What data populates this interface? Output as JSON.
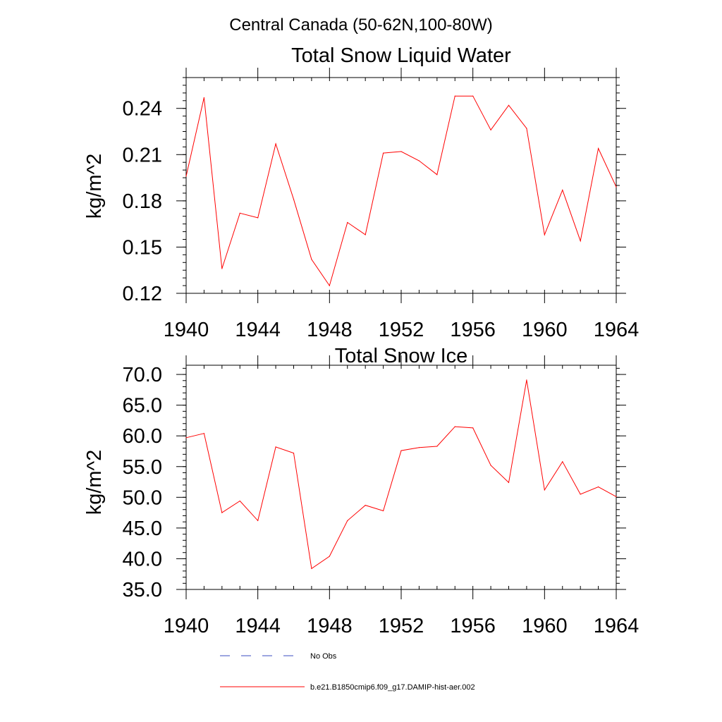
{
  "figure": {
    "title": "Central Canada (50-62N,100-80W)",
    "legend": [
      {
        "label": "No Obs",
        "color": "#3b4cc0",
        "style": "dashed"
      },
      {
        "label": "b.e21.B1850cmip6.f09_g17.DAMIP-hist-aer.002",
        "color": "#ff0000",
        "style": "solid"
      }
    ]
  },
  "chart_data": [
    {
      "type": "line",
      "title": "Total Snow Liquid Water",
      "xlabel": "",
      "ylabel": "kg/m^2",
      "xlim": [
        1940,
        1964
      ],
      "ylim": [
        0.12,
        0.26
      ],
      "xticks": [
        1940,
        1944,
        1948,
        1952,
        1956,
        1960,
        1964
      ],
      "xtick_labels": [
        "1940",
        "1944",
        "1948",
        "1952",
        "1956",
        "1960",
        "1964"
      ],
      "yticks": [
        0.12,
        0.15,
        0.18,
        0.21,
        0.24
      ],
      "ytick_labels": [
        "0.12",
        "0.15",
        "0.18",
        "0.21",
        "0.24"
      ],
      "grid": false,
      "series": [
        {
          "color": "#ff0000",
          "x": [
            1940,
            1941,
            1942,
            1943,
            1944,
            1945,
            1946,
            1947,
            1948,
            1949,
            1950,
            1951,
            1952,
            1953,
            1954,
            1955,
            1956,
            1957,
            1958,
            1959,
            1960,
            1961,
            1962,
            1963,
            1964
          ],
          "y": [
            0.196,
            0.247,
            0.136,
            0.172,
            0.169,
            0.217,
            0.181,
            0.142,
            0.125,
            0.166,
            0.158,
            0.211,
            0.212,
            0.206,
            0.197,
            0.248,
            0.248,
            0.226,
            0.242,
            0.227,
            0.158,
            0.187,
            0.154,
            0.214,
            0.189
          ]
        }
      ]
    },
    {
      "type": "line",
      "title": "Total Snow Ice",
      "xlabel": "",
      "ylabel": "kg/m^2",
      "xlim": [
        1940,
        1964
      ],
      "ylim": [
        35.0,
        71.5
      ],
      "xticks": [
        1940,
        1944,
        1948,
        1952,
        1956,
        1960,
        1964
      ],
      "xtick_labels": [
        "1940",
        "1944",
        "1948",
        "1952",
        "1956",
        "1960",
        "1964"
      ],
      "yticks": [
        35,
        40,
        45,
        50,
        55,
        60,
        65,
        70
      ],
      "ytick_labels": [
        "35.0",
        "40.0",
        "45.0",
        "50.0",
        "55.0",
        "60.0",
        "65.0",
        "70.0"
      ],
      "grid": false,
      "series": [
        {
          "color": "#ff0000",
          "x": [
            1940,
            1941,
            1942,
            1943,
            1944,
            1945,
            1946,
            1947,
            1948,
            1949,
            1950,
            1951,
            1952,
            1953,
            1954,
            1955,
            1956,
            1957,
            1958,
            1959,
            1960,
            1961,
            1962,
            1963,
            1964
          ],
          "y": [
            59.7,
            60.4,
            47.5,
            49.4,
            46.2,
            58.2,
            57.2,
            38.4,
            40.4,
            46.2,
            48.7,
            47.8,
            57.6,
            58.1,
            58.3,
            61.5,
            61.3,
            55.2,
            52.4,
            69.1,
            51.2,
            55.8,
            50.5,
            51.7,
            50.1
          ]
        }
      ]
    }
  ]
}
